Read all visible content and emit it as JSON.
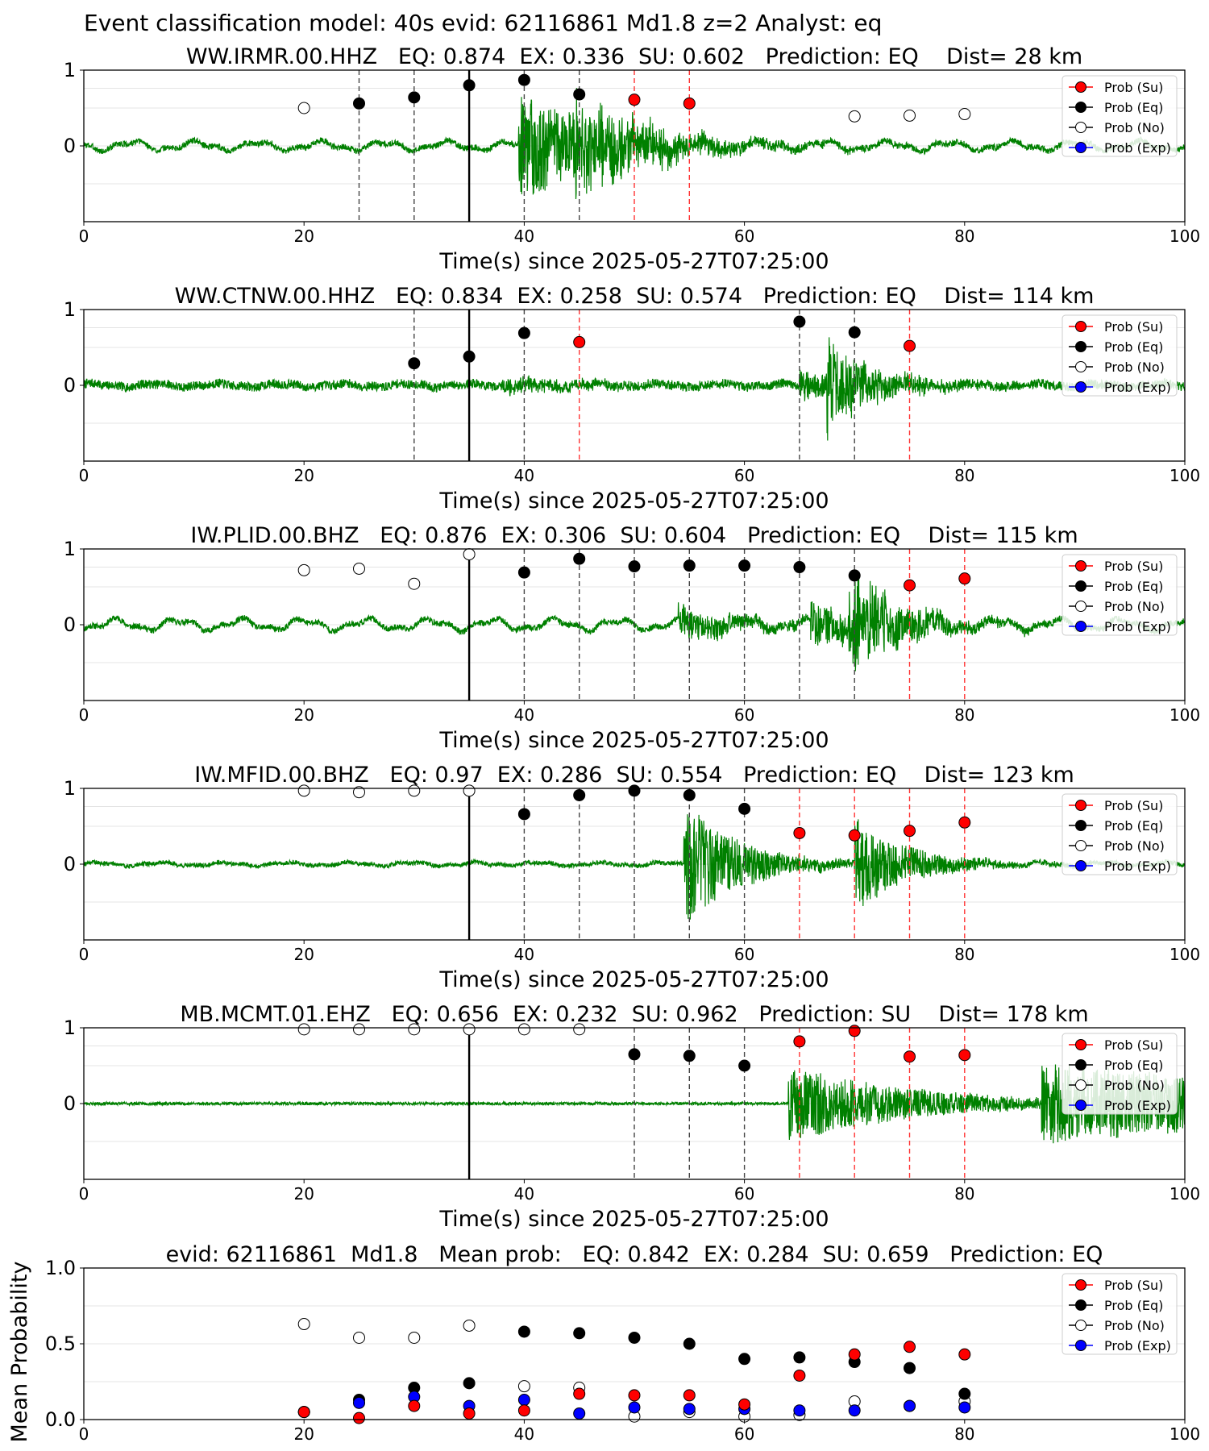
{
  "figure": {
    "suptitle": "Event classification model: 40s evid: 62116861 Md1.8 z=2 Analyst: eq"
  },
  "legend_labels": [
    "Prob (Su)",
    "Prob (Eq)",
    "Prob (No)",
    "Prob (Exp)"
  ],
  "colors": {
    "trace": "#008000",
    "su": "#ff0000",
    "eq": "#000000",
    "no": "#ffffff",
    "exp": "#0000ff",
    "red_line": "#ff3333",
    "gray_line": "#444444"
  },
  "chart_data": [
    {
      "type": "scatter",
      "title": "WW.IRMR.00.HHZ   EQ: 0.874  EX: 0.336  SU: 0.602   Prediction: EQ    Dist= 28 km",
      "xlabel": "Time(s) since 2025-05-27T07:25:00",
      "ylabel": "",
      "xlim": [
        0,
        100
      ],
      "xticks": [
        0,
        20,
        40,
        60,
        80,
        100
      ],
      "ylim": [
        -1,
        1
      ],
      "yticks": [
        0,
        1
      ],
      "reference_line_x": 35,
      "trace": {
        "onsets": [
          {
            "t": 39.5,
            "amp": 0.7,
            "decay": 9
          },
          {
            "t": 44.5,
            "amp": 0.5,
            "decay": 6
          }
        ],
        "noise": 0.04,
        "longperiod": 0.05,
        "seed": 3
      },
      "points": [
        {
          "x": 20,
          "y": 0.5,
          "cls": "no"
        },
        {
          "x": 25,
          "y": 0.56,
          "cls": "eq"
        },
        {
          "x": 30,
          "y": 0.64,
          "cls": "eq"
        },
        {
          "x": 35,
          "y": 0.8,
          "cls": "eq"
        },
        {
          "x": 40,
          "y": 0.87,
          "cls": "eq"
        },
        {
          "x": 45,
          "y": 0.68,
          "cls": "eq"
        },
        {
          "x": 50,
          "y": 0.61,
          "cls": "su"
        },
        {
          "x": 55,
          "y": 0.56,
          "cls": "su"
        },
        {
          "x": 70,
          "y": 0.39,
          "cls": "no"
        },
        {
          "x": 75,
          "y": 0.4,
          "cls": "no"
        },
        {
          "x": 80,
          "y": 0.42,
          "cls": "no"
        }
      ]
    },
    {
      "type": "scatter",
      "title": "WW.CTNW.00.HHZ   EQ: 0.834  EX: 0.258  SU: 0.574   Prediction: EQ    Dist= 114 km",
      "xlabel": "Time(s) since 2025-05-27T07:25:00",
      "ylabel": "",
      "xlim": [
        0,
        100
      ],
      "xticks": [
        0,
        20,
        40,
        60,
        80,
        100
      ],
      "ylim": [
        -1,
        1
      ],
      "yticks": [
        0,
        1
      ],
      "reference_line_x": 35,
      "trace": {
        "onsets": [
          {
            "t": 38,
            "amp": 0.1,
            "decay": 8
          },
          {
            "t": 65,
            "amp": 0.2,
            "decay": 6
          },
          {
            "t": 67.5,
            "amp": 0.6,
            "decay": 4
          }
        ],
        "noise": 0.06,
        "longperiod": 0.02,
        "seed": 7
      },
      "points": [
        {
          "x": 30,
          "y": 0.29,
          "cls": "eq"
        },
        {
          "x": 35,
          "y": 0.38,
          "cls": "eq"
        },
        {
          "x": 40,
          "y": 0.69,
          "cls": "eq"
        },
        {
          "x": 45,
          "y": 0.57,
          "cls": "su"
        },
        {
          "x": 65,
          "y": 0.84,
          "cls": "eq"
        },
        {
          "x": 70,
          "y": 0.7,
          "cls": "eq"
        },
        {
          "x": 75,
          "y": 0.52,
          "cls": "su"
        }
      ]
    },
    {
      "type": "scatter",
      "title": "IW.PLID.00.BHZ   EQ: 0.876  EX: 0.306  SU: 0.604   Prediction: EQ    Dist= 115 km",
      "xlabel": "Time(s) since 2025-05-27T07:25:00",
      "ylabel": "",
      "xlim": [
        0,
        100
      ],
      "xticks": [
        0,
        20,
        40,
        60,
        80,
        100
      ],
      "ylim": [
        -1,
        1
      ],
      "yticks": [
        0,
        1
      ],
      "reference_line_x": 35,
      "trace": {
        "onsets": [
          {
            "t": 54,
            "amp": 0.22,
            "decay": 7
          },
          {
            "t": 66,
            "amp": 0.3,
            "decay": 6
          },
          {
            "t": 69.5,
            "amp": 0.65,
            "decay": 5
          }
        ],
        "noise": 0.04,
        "longperiod": 0.06,
        "seed": 11
      },
      "points": [
        {
          "x": 20,
          "y": 0.72,
          "cls": "no"
        },
        {
          "x": 25,
          "y": 0.74,
          "cls": "no"
        },
        {
          "x": 30,
          "y": 0.54,
          "cls": "no"
        },
        {
          "x": 35,
          "y": 0.93,
          "cls": "no"
        },
        {
          "x": 40,
          "y": 0.69,
          "cls": "eq"
        },
        {
          "x": 45,
          "y": 0.87,
          "cls": "eq"
        },
        {
          "x": 50,
          "y": 0.77,
          "cls": "eq"
        },
        {
          "x": 55,
          "y": 0.78,
          "cls": "eq"
        },
        {
          "x": 60,
          "y": 0.78,
          "cls": "eq"
        },
        {
          "x": 65,
          "y": 0.76,
          "cls": "eq"
        },
        {
          "x": 70,
          "y": 0.65,
          "cls": "eq"
        },
        {
          "x": 75,
          "y": 0.52,
          "cls": "su"
        },
        {
          "x": 80,
          "y": 0.61,
          "cls": "su"
        }
      ]
    },
    {
      "type": "scatter",
      "title": "IW.MFID.00.BHZ   EQ: 0.97  EX: 0.286  SU: 0.554   Prediction: EQ    Dist= 123 km",
      "xlabel": "Time(s) since 2025-05-27T07:25:00",
      "ylabel": "",
      "xlim": [
        0,
        100
      ],
      "xticks": [
        0,
        20,
        40,
        60,
        80,
        100
      ],
      "ylim": [
        -1,
        1
      ],
      "yticks": [
        0,
        1
      ],
      "reference_line_x": 35,
      "trace": {
        "onsets": [
          {
            "t": 54.5,
            "amp": 0.85,
            "decay": 5
          },
          {
            "t": 70,
            "amp": 0.6,
            "decay": 5
          }
        ],
        "noise": 0.03,
        "longperiod": 0.02,
        "seed": 19
      },
      "points": [
        {
          "x": 20,
          "y": 0.97,
          "cls": "no"
        },
        {
          "x": 25,
          "y": 0.95,
          "cls": "no"
        },
        {
          "x": 30,
          "y": 0.97,
          "cls": "no"
        },
        {
          "x": 35,
          "y": 0.97,
          "cls": "no"
        },
        {
          "x": 40,
          "y": 0.66,
          "cls": "eq"
        },
        {
          "x": 45,
          "y": 0.91,
          "cls": "eq"
        },
        {
          "x": 50,
          "y": 0.97,
          "cls": "eq"
        },
        {
          "x": 55,
          "y": 0.91,
          "cls": "eq"
        },
        {
          "x": 60,
          "y": 0.73,
          "cls": "eq"
        },
        {
          "x": 65,
          "y": 0.41,
          "cls": "su"
        },
        {
          "x": 70,
          "y": 0.38,
          "cls": "su"
        },
        {
          "x": 75,
          "y": 0.44,
          "cls": "su"
        },
        {
          "x": 80,
          "y": 0.55,
          "cls": "su"
        }
      ]
    },
    {
      "type": "scatter",
      "title": "MB.MCMT.01.EHZ   EQ: 0.656  EX: 0.232  SU: 0.962   Prediction: SU    Dist= 178 km",
      "xlabel": "Time(s) since 2025-05-27T07:25:00",
      "ylabel": "",
      "xlim": [
        0,
        100
      ],
      "xticks": [
        0,
        20,
        40,
        60,
        80,
        100
      ],
      "ylim": [
        -1,
        1
      ],
      "yticks": [
        0,
        1
      ],
      "reference_line_x": 35,
      "trace": {
        "onsets": [
          {
            "t": 64,
            "amp": 0.5,
            "decay": 12
          },
          {
            "t": 87,
            "amp": 0.55,
            "decay": 30
          }
        ],
        "noise": 0.02,
        "longperiod": 0.0,
        "seed": 23
      },
      "points": [
        {
          "x": 20,
          "y": 0.98,
          "cls": "no"
        },
        {
          "x": 25,
          "y": 0.98,
          "cls": "no"
        },
        {
          "x": 30,
          "y": 0.98,
          "cls": "no"
        },
        {
          "x": 35,
          "y": 0.98,
          "cls": "no"
        },
        {
          "x": 40,
          "y": 0.98,
          "cls": "no"
        },
        {
          "x": 45,
          "y": 0.98,
          "cls": "no"
        },
        {
          "x": 50,
          "y": 0.65,
          "cls": "eq"
        },
        {
          "x": 55,
          "y": 0.63,
          "cls": "eq"
        },
        {
          "x": 60,
          "y": 0.5,
          "cls": "eq"
        },
        {
          "x": 65,
          "y": 0.82,
          "cls": "su"
        },
        {
          "x": 70,
          "y": 0.96,
          "cls": "su"
        },
        {
          "x": 75,
          "y": 0.62,
          "cls": "su"
        },
        {
          "x": 80,
          "y": 0.64,
          "cls": "su"
        }
      ]
    },
    {
      "type": "scatter",
      "title": "evid: 62116861  Md1.8   Mean prob:   EQ: 0.842  EX: 0.284  SU: 0.659   Prediction: EQ",
      "xlabel": "",
      "ylabel": "Mean Probability",
      "xlim": [
        0,
        100
      ],
      "xticks": [
        0,
        20,
        40,
        60,
        80,
        100
      ],
      "ylim": [
        0,
        1
      ],
      "yticks": [
        0.0,
        0.5,
        1.0
      ],
      "ytick_labels": [
        "0.0",
        "0.5",
        "1.0"
      ],
      "series": [
        {
          "name": "Prob (No)",
          "cls": "no",
          "x": [
            20,
            25,
            30,
            35,
            40,
            45,
            50,
            55,
            60,
            65,
            70,
            75,
            80
          ],
          "y": [
            0.63,
            0.54,
            0.54,
            0.62,
            0.22,
            0.21,
            0.02,
            0.05,
            0.02,
            0.03,
            0.12,
            0.09,
            0.12
          ]
        },
        {
          "name": "Prob (Eq)",
          "cls": "eq",
          "x": [
            20,
            25,
            30,
            35,
            40,
            45,
            50,
            55,
            60,
            65,
            70,
            75,
            80
          ],
          "y": [
            0.05,
            0.13,
            0.21,
            0.24,
            0.58,
            0.57,
            0.54,
            0.5,
            0.4,
            0.41,
            0.38,
            0.34,
            0.17
          ]
        },
        {
          "name": "Prob (Exp)",
          "cls": "exp",
          "x": [
            20,
            25,
            30,
            35,
            40,
            45,
            50,
            55,
            60,
            65,
            70,
            75,
            80
          ],
          "y": [
            0.05,
            0.11,
            0.15,
            0.09,
            0.13,
            0.04,
            0.08,
            0.07,
            0.07,
            0.06,
            0.06,
            0.09,
            0.08
          ]
        },
        {
          "name": "Prob (Su)",
          "cls": "su",
          "x": [
            20,
            25,
            30,
            35,
            40,
            45,
            50,
            55,
            60,
            65,
            70,
            75,
            80
          ],
          "y": [
            0.05,
            0.01,
            0.09,
            0.04,
            0.06,
            0.17,
            0.16,
            0.16,
            0.1,
            0.29,
            0.43,
            0.48,
            0.43
          ]
        }
      ]
    }
  ]
}
